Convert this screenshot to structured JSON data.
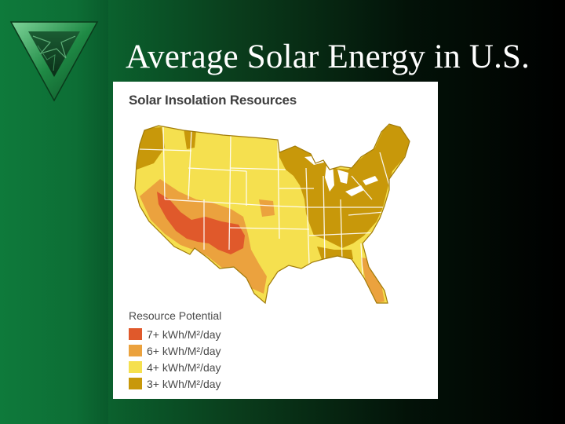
{
  "slide": {
    "title": "Average Solar Energy in U.S."
  },
  "map": {
    "heading": "Solar Insolation Resources",
    "legend_title": "Resource Potential",
    "legend": [
      {
        "label": "7+ kWh/M²/day",
        "color": "#e0592b"
      },
      {
        "label": "6+ kWh/M²/day",
        "color": "#eba23e"
      },
      {
        "label": "4+ kWh/M²/day",
        "color": "#f5e04f"
      },
      {
        "label": "3+ kWh/M²/day",
        "color": "#c8980a"
      }
    ]
  },
  "colors": {
    "state_border": "#ffffff",
    "outline": "#a07a08"
  },
  "icons": {
    "logo": "green-marble-triangle-logo"
  }
}
